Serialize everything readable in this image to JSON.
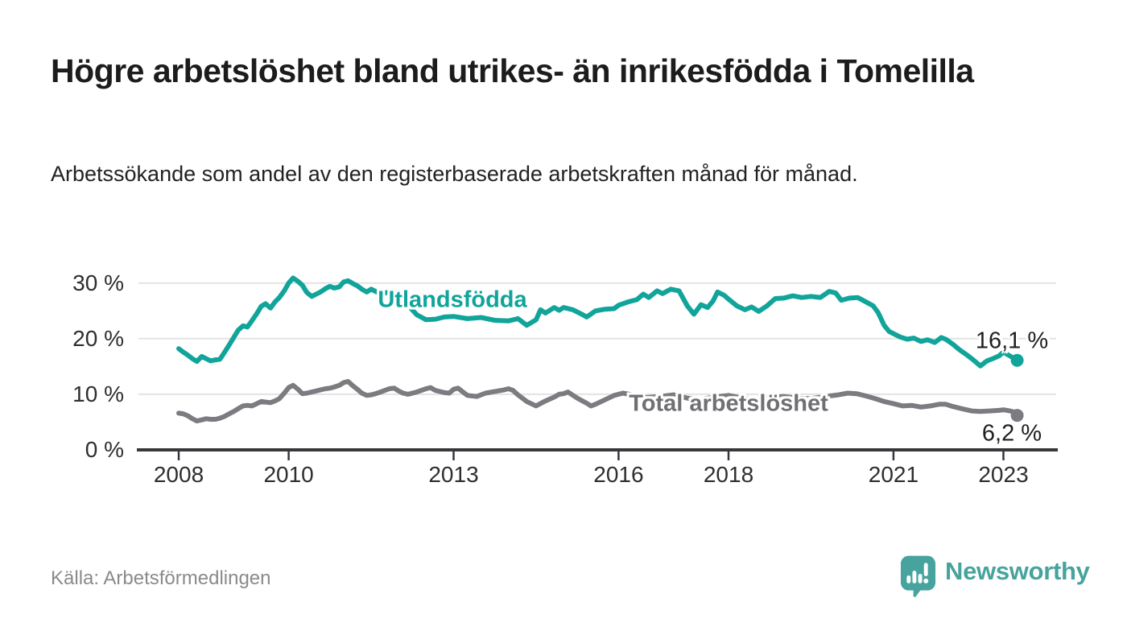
{
  "header": {
    "title": "Högre arbetslöshet bland utrikes- än inrikesfödda i Tomelilla",
    "subtitle": "Arbetssökande som andel av den registerbaserade arbetskraften månad för månad."
  },
  "footer": {
    "source": "Källa: Arbetsförmedlingen",
    "brand_name": "Newsworthy",
    "brand_icon": "newsworthy-speech-bubble-bar-chart-icon"
  },
  "colors": {
    "foreign_born_line": "#10A49A",
    "total_line": "#7B7B80",
    "grid": "#E3E3E3",
    "axis": "#38383C",
    "tick_label": "#2E2E2E",
    "value_label": "#1F1F1F",
    "title": "#1C1C1C",
    "subtitle": "#222222",
    "source_text": "#8A8A8E",
    "brand_teal": "#47A39D"
  },
  "chart_data": {
    "type": "line",
    "x_unit": "decimal_year_monthly",
    "x_range": [
      2008.0,
      2023.25
    ],
    "ylim": [
      0,
      32
    ],
    "grid": "horizontal",
    "y_ticks": [
      {
        "value": 30,
        "label": "30 %"
      },
      {
        "value": 20,
        "label": "20 %"
      },
      {
        "value": 10,
        "label": "10 %"
      },
      {
        "value": 0,
        "label": "0 %"
      }
    ],
    "x_ticks": [
      {
        "value": 2008,
        "label": "2008"
      },
      {
        "value": 2010,
        "label": "2010"
      },
      {
        "value": 2013,
        "label": "2013"
      },
      {
        "value": 2016,
        "label": "2016"
      },
      {
        "value": 2018,
        "label": "2018"
      },
      {
        "value": 2021,
        "label": "2021"
      },
      {
        "value": 2023,
        "label": "2023"
      }
    ],
    "series": [
      {
        "name": "Utlandsfödda",
        "color": "#10A49A",
        "end_label": "16,1 %",
        "end_value": 16.1,
        "points": [
          [
            2008.0,
            18.2
          ],
          [
            2008.08,
            17.6
          ],
          [
            2008.17,
            17.0
          ],
          [
            2008.25,
            16.4
          ],
          [
            2008.33,
            15.9
          ],
          [
            2008.42,
            16.8
          ],
          [
            2008.5,
            16.4
          ],
          [
            2008.58,
            16.0
          ],
          [
            2008.67,
            16.2
          ],
          [
            2008.75,
            16.3
          ],
          [
            2008.83,
            17.5
          ],
          [
            2008.92,
            18.9
          ],
          [
            2009.0,
            20.2
          ],
          [
            2009.08,
            21.5
          ],
          [
            2009.17,
            22.3
          ],
          [
            2009.25,
            22.1
          ],
          [
            2009.33,
            23.2
          ],
          [
            2009.42,
            24.5
          ],
          [
            2009.5,
            25.8
          ],
          [
            2009.58,
            26.3
          ],
          [
            2009.67,
            25.5
          ],
          [
            2009.75,
            26.6
          ],
          [
            2009.83,
            27.4
          ],
          [
            2009.92,
            28.6
          ],
          [
            2010.0,
            30.0
          ],
          [
            2010.08,
            30.9
          ],
          [
            2010.17,
            30.3
          ],
          [
            2010.25,
            29.6
          ],
          [
            2010.33,
            28.3
          ],
          [
            2010.42,
            27.6
          ],
          [
            2010.5,
            28.0
          ],
          [
            2010.58,
            28.4
          ],
          [
            2010.67,
            29.0
          ],
          [
            2010.75,
            29.4
          ],
          [
            2010.83,
            29.1
          ],
          [
            2010.92,
            29.3
          ],
          [
            2011.0,
            30.2
          ],
          [
            2011.08,
            30.4
          ],
          [
            2011.17,
            29.9
          ],
          [
            2011.25,
            29.5
          ],
          [
            2011.33,
            28.9
          ],
          [
            2011.42,
            28.4
          ],
          [
            2011.5,
            28.9
          ],
          [
            2011.58,
            28.5
          ],
          [
            2011.67,
            28.1
          ],
          [
            2011.75,
            28.2
          ],
          [
            2011.83,
            28.4
          ],
          [
            2011.92,
            28.0
          ],
          [
            2012.0,
            27.6
          ],
          [
            2012.17,
            26.0
          ],
          [
            2012.33,
            24.3
          ],
          [
            2012.5,
            23.4
          ],
          [
            2012.67,
            23.5
          ],
          [
            2012.83,
            23.9
          ],
          [
            2013.0,
            24.0
          ],
          [
            2013.25,
            23.6
          ],
          [
            2013.5,
            23.8
          ],
          [
            2013.75,
            23.3
          ],
          [
            2014.0,
            23.2
          ],
          [
            2014.17,
            23.6
          ],
          [
            2014.33,
            22.4
          ],
          [
            2014.5,
            23.4
          ],
          [
            2014.58,
            25.2
          ],
          [
            2014.67,
            24.6
          ],
          [
            2014.83,
            25.6
          ],
          [
            2014.92,
            25.1
          ],
          [
            2015.0,
            25.6
          ],
          [
            2015.17,
            25.2
          ],
          [
            2015.33,
            24.4
          ],
          [
            2015.42,
            23.9
          ],
          [
            2015.58,
            25.0
          ],
          [
            2015.75,
            25.3
          ],
          [
            2015.92,
            25.4
          ],
          [
            2016.0,
            26.0
          ],
          [
            2016.17,
            26.6
          ],
          [
            2016.33,
            27.0
          ],
          [
            2016.45,
            28.0
          ],
          [
            2016.55,
            27.4
          ],
          [
            2016.7,
            28.6
          ],
          [
            2016.8,
            28.1
          ],
          [
            2016.95,
            28.9
          ],
          [
            2017.1,
            28.6
          ],
          [
            2017.25,
            25.9
          ],
          [
            2017.37,
            24.4
          ],
          [
            2017.5,
            26.1
          ],
          [
            2017.62,
            25.6
          ],
          [
            2017.72,
            26.8
          ],
          [
            2017.8,
            28.4
          ],
          [
            2017.92,
            27.8
          ],
          [
            2018.0,
            27.1
          ],
          [
            2018.15,
            25.9
          ],
          [
            2018.3,
            25.2
          ],
          [
            2018.42,
            25.7
          ],
          [
            2018.55,
            24.9
          ],
          [
            2018.7,
            25.9
          ],
          [
            2018.85,
            27.2
          ],
          [
            2019.0,
            27.3
          ],
          [
            2019.17,
            27.7
          ],
          [
            2019.33,
            27.4
          ],
          [
            2019.5,
            27.6
          ],
          [
            2019.67,
            27.4
          ],
          [
            2019.83,
            28.5
          ],
          [
            2019.95,
            28.2
          ],
          [
            2020.05,
            26.9
          ],
          [
            2020.2,
            27.3
          ],
          [
            2020.35,
            27.4
          ],
          [
            2020.5,
            26.6
          ],
          [
            2020.63,
            25.9
          ],
          [
            2020.72,
            24.7
          ],
          [
            2020.83,
            22.4
          ],
          [
            2020.92,
            21.3
          ],
          [
            2021.0,
            20.9
          ],
          [
            2021.12,
            20.3
          ],
          [
            2021.25,
            19.9
          ],
          [
            2021.37,
            20.1
          ],
          [
            2021.5,
            19.5
          ],
          [
            2021.62,
            19.8
          ],
          [
            2021.75,
            19.3
          ],
          [
            2021.87,
            20.2
          ],
          [
            2021.95,
            19.9
          ],
          [
            2022.08,
            19.0
          ],
          [
            2022.2,
            18.0
          ],
          [
            2022.33,
            17.1
          ],
          [
            2022.45,
            16.2
          ],
          [
            2022.58,
            15.1
          ],
          [
            2022.7,
            16.0
          ],
          [
            2022.83,
            16.5
          ],
          [
            2022.92,
            16.9
          ],
          [
            2023.0,
            17.6
          ],
          [
            2023.08,
            17.1
          ],
          [
            2023.17,
            16.6
          ],
          [
            2023.25,
            16.1
          ]
        ]
      },
      {
        "name": "Total arbetslöshet",
        "color": "#7B7B80",
        "end_label": "6,2 %",
        "end_value": 6.2,
        "points": [
          [
            2008.0,
            6.6
          ],
          [
            2008.08,
            6.5
          ],
          [
            2008.17,
            6.1
          ],
          [
            2008.25,
            5.6
          ],
          [
            2008.33,
            5.2
          ],
          [
            2008.42,
            5.4
          ],
          [
            2008.5,
            5.6
          ],
          [
            2008.58,
            5.5
          ],
          [
            2008.67,
            5.5
          ],
          [
            2008.75,
            5.7
          ],
          [
            2008.83,
            6.0
          ],
          [
            2008.92,
            6.5
          ],
          [
            2009.0,
            6.9
          ],
          [
            2009.08,
            7.4
          ],
          [
            2009.17,
            7.9
          ],
          [
            2009.25,
            8.0
          ],
          [
            2009.33,
            7.9
          ],
          [
            2009.42,
            8.3
          ],
          [
            2009.5,
            8.7
          ],
          [
            2009.58,
            8.6
          ],
          [
            2009.67,
            8.5
          ],
          [
            2009.75,
            8.8
          ],
          [
            2009.83,
            9.2
          ],
          [
            2009.92,
            10.2
          ],
          [
            2010.0,
            11.2
          ],
          [
            2010.08,
            11.6
          ],
          [
            2010.17,
            10.9
          ],
          [
            2010.25,
            10.1
          ],
          [
            2010.33,
            10.2
          ],
          [
            2010.42,
            10.4
          ],
          [
            2010.5,
            10.6
          ],
          [
            2010.58,
            10.8
          ],
          [
            2010.67,
            11.0
          ],
          [
            2010.75,
            11.1
          ],
          [
            2010.83,
            11.3
          ],
          [
            2010.92,
            11.6
          ],
          [
            2011.0,
            12.1
          ],
          [
            2011.08,
            12.3
          ],
          [
            2011.17,
            11.5
          ],
          [
            2011.25,
            10.9
          ],
          [
            2011.33,
            10.2
          ],
          [
            2011.42,
            9.8
          ],
          [
            2011.5,
            9.9
          ],
          [
            2011.58,
            10.1
          ],
          [
            2011.67,
            10.4
          ],
          [
            2011.75,
            10.7
          ],
          [
            2011.83,
            11.0
          ],
          [
            2011.92,
            11.1
          ],
          [
            2012.0,
            10.6
          ],
          [
            2012.08,
            10.2
          ],
          [
            2012.17,
            10.0
          ],
          [
            2012.33,
            10.4
          ],
          [
            2012.5,
            11.0
          ],
          [
            2012.58,
            11.2
          ],
          [
            2012.67,
            10.7
          ],
          [
            2012.83,
            10.3
          ],
          [
            2012.92,
            10.2
          ],
          [
            2013.0,
            10.9
          ],
          [
            2013.08,
            11.1
          ],
          [
            2013.17,
            10.4
          ],
          [
            2013.25,
            9.8
          ],
          [
            2013.42,
            9.6
          ],
          [
            2013.58,
            10.2
          ],
          [
            2013.75,
            10.5
          ],
          [
            2013.92,
            10.8
          ],
          [
            2014.0,
            11.0
          ],
          [
            2014.08,
            10.7
          ],
          [
            2014.17,
            9.9
          ],
          [
            2014.33,
            8.7
          ],
          [
            2014.5,
            7.9
          ],
          [
            2014.67,
            8.8
          ],
          [
            2014.83,
            9.5
          ],
          [
            2014.92,
            10.0
          ],
          [
            2015.0,
            10.1
          ],
          [
            2015.08,
            10.4
          ],
          [
            2015.25,
            9.3
          ],
          [
            2015.42,
            8.4
          ],
          [
            2015.5,
            7.9
          ],
          [
            2015.58,
            8.2
          ],
          [
            2015.75,
            9.0
          ],
          [
            2015.92,
            9.8
          ],
          [
            2016.08,
            10.2
          ],
          [
            2016.25,
            9.9
          ],
          [
            2016.5,
            9.4
          ],
          [
            2016.75,
            9.6
          ],
          [
            2017.0,
            9.9
          ],
          [
            2017.25,
            9.3
          ],
          [
            2017.5,
            9.1
          ],
          [
            2017.75,
            9.5
          ],
          [
            2018.0,
            9.8
          ],
          [
            2018.25,
            9.3
          ],
          [
            2018.5,
            9.1
          ],
          [
            2018.75,
            9.4
          ],
          [
            2019.0,
            9.6
          ],
          [
            2019.25,
            9.3
          ],
          [
            2019.5,
            9.2
          ],
          [
            2019.75,
            9.6
          ],
          [
            2020.0,
            9.9
          ],
          [
            2020.17,
            10.2
          ],
          [
            2020.33,
            10.1
          ],
          [
            2020.5,
            9.7
          ],
          [
            2020.67,
            9.2
          ],
          [
            2020.83,
            8.7
          ],
          [
            2021.0,
            8.3
          ],
          [
            2021.17,
            7.9
          ],
          [
            2021.33,
            8.0
          ],
          [
            2021.5,
            7.7
          ],
          [
            2021.67,
            7.9
          ],
          [
            2021.83,
            8.2
          ],
          [
            2021.95,
            8.2
          ],
          [
            2022.08,
            7.8
          ],
          [
            2022.25,
            7.4
          ],
          [
            2022.42,
            7.0
          ],
          [
            2022.58,
            6.9
          ],
          [
            2022.75,
            7.0
          ],
          [
            2022.92,
            7.1
          ],
          [
            2023.0,
            7.2
          ],
          [
            2023.12,
            7.0
          ],
          [
            2023.2,
            6.8
          ],
          [
            2023.25,
            6.2
          ]
        ]
      }
    ]
  }
}
